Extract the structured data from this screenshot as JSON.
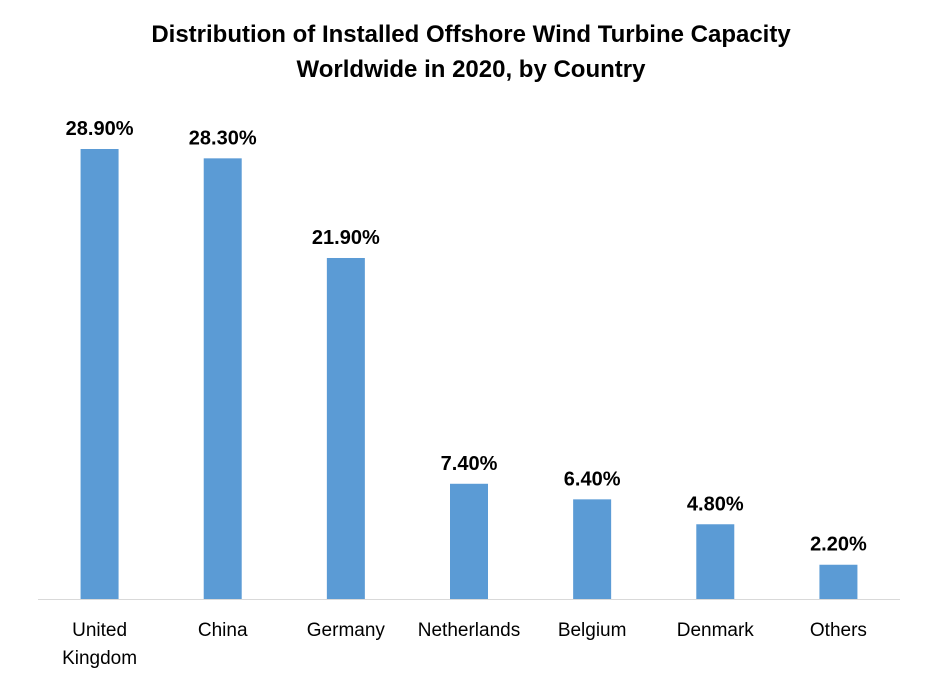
{
  "chart_data": {
    "type": "bar",
    "title": [
      "Distribution of Installed Offshore Wind Turbine Capacity",
      "Worldwide in 2020, by Country"
    ],
    "categories": [
      "United Kingdom",
      "China",
      "Germany",
      "Netherlands",
      "Belgium",
      "Denmark",
      "Others"
    ],
    "values": [
      28.9,
      28.3,
      21.9,
      7.4,
      6.4,
      4.8,
      2.2
    ],
    "value_labels": [
      "28.90%",
      "28.30%",
      "21.90%",
      "7.40%",
      "6.40%",
      "4.80%",
      "2.20%"
    ],
    "color": "#5b9bd5",
    "grid": false
  }
}
